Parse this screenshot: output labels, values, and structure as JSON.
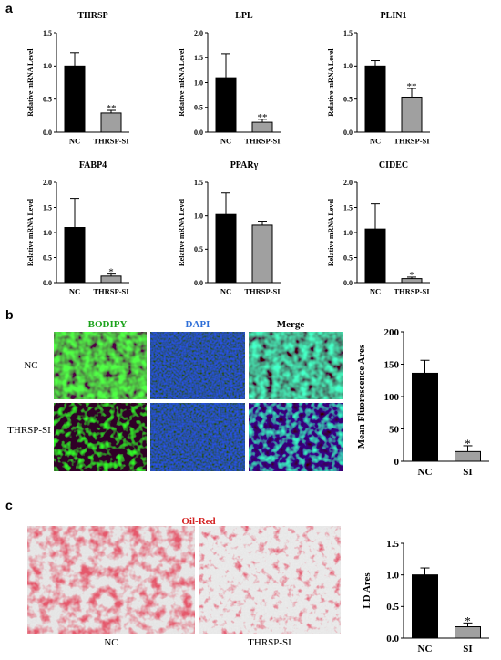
{
  "panels": {
    "a": "a",
    "b": "b",
    "c": "c"
  },
  "chart_data": [
    {
      "id": "THRSP",
      "type": "bar",
      "title": "THRSP",
      "ylabel": "Relative mRNA Level",
      "categories": [
        "NC",
        "THRSP-SI"
      ],
      "values": [
        1.0,
        0.29
      ],
      "errors": [
        0.2,
        0.04
      ],
      "colors": [
        "#000000",
        "#a0a0a0"
      ],
      "ylim": [
        0,
        1.5
      ],
      "yticks": [
        "0.0",
        "0.5",
        "1.0",
        "1.5"
      ],
      "annotations": [
        "",
        "**"
      ]
    },
    {
      "id": "LPL",
      "type": "bar",
      "title": "LPL",
      "ylabel": "Relative mRNA Level",
      "categories": [
        "NC",
        "THRSP-SI"
      ],
      "values": [
        1.08,
        0.2
      ],
      "errors": [
        0.5,
        0.06
      ],
      "colors": [
        "#000000",
        "#a0a0a0"
      ],
      "ylim": [
        0,
        2.0
      ],
      "yticks": [
        "0.0",
        "0.5",
        "1.0",
        "1.5",
        "2.0"
      ],
      "annotations": [
        "",
        "**"
      ]
    },
    {
      "id": "PLIN1",
      "type": "bar",
      "title": "PLIN1",
      "ylabel": "Relative mRNA Level",
      "categories": [
        "NC",
        "THRSP-SI"
      ],
      "values": [
        1.0,
        0.53
      ],
      "errors": [
        0.08,
        0.13
      ],
      "colors": [
        "#000000",
        "#a0a0a0"
      ],
      "ylim": [
        0,
        1.5
      ],
      "yticks": [
        "0.0",
        "0.5",
        "1.0",
        "1.5"
      ],
      "annotations": [
        "",
        "**"
      ]
    },
    {
      "id": "FABP4",
      "type": "bar",
      "title": "FABP4",
      "ylabel": "Relative mRNA Level",
      "categories": [
        "NC",
        "THRSP-SI"
      ],
      "values": [
        1.1,
        0.13
      ],
      "errors": [
        0.58,
        0.04
      ],
      "colors": [
        "#000000",
        "#a0a0a0"
      ],
      "ylim": [
        0,
        2.0
      ],
      "yticks": [
        "0.0",
        "0.5",
        "1.0",
        "1.5",
        "2.0"
      ],
      "annotations": [
        "",
        "*"
      ]
    },
    {
      "id": "PPARG",
      "type": "bar",
      "title": "PPARγ",
      "ylabel": "Relative mRNA Level",
      "categories": [
        "NC",
        "THRSP-SI"
      ],
      "values": [
        1.02,
        0.86
      ],
      "errors": [
        0.32,
        0.06
      ],
      "colors": [
        "#000000",
        "#a0a0a0"
      ],
      "ylim": [
        0,
        1.5
      ],
      "yticks": [
        "0.0",
        "0.5",
        "1.0",
        "1.5"
      ],
      "annotations": [
        "",
        ""
      ]
    },
    {
      "id": "CIDEC",
      "type": "bar",
      "title": "CIDEC",
      "ylabel": "Relative mRNA Level",
      "categories": [
        "NC",
        "THRSP-SI"
      ],
      "values": [
        1.07,
        0.08
      ],
      "errors": [
        0.5,
        0.03
      ],
      "colors": [
        "#000000",
        "#a0a0a0"
      ],
      "ylim": [
        0,
        2.0
      ],
      "yticks": [
        "0.0",
        "0.5",
        "1.0",
        "1.5",
        "2.0"
      ],
      "annotations": [
        "",
        "*"
      ]
    },
    {
      "id": "fluorescence",
      "type": "bar",
      "title": "",
      "ylabel": "Mean Fluorescence Ares",
      "categories": [
        "NC",
        "SI"
      ],
      "values": [
        136,
        15
      ],
      "errors": [
        20,
        9
      ],
      "colors": [
        "#000000",
        "#a0a0a0"
      ],
      "ylim": [
        0,
        200
      ],
      "yticks": [
        "0",
        "50",
        "100",
        "150",
        "200"
      ],
      "annotations": [
        "",
        "*"
      ]
    },
    {
      "id": "ld",
      "type": "bar",
      "title": "",
      "ylabel": "LD Ares",
      "categories": [
        "NC",
        "SI"
      ],
      "values": [
        1.0,
        0.18
      ],
      "errors": [
        0.11,
        0.06
      ],
      "colors": [
        "#000000",
        "#a0a0a0"
      ],
      "ylim": [
        0,
        1.5
      ],
      "yticks": [
        "0.0",
        "0.5",
        "1.0",
        "1.5"
      ],
      "annotations": [
        "",
        "*"
      ]
    }
  ],
  "micrographs": {
    "columns": [
      {
        "label": "BODIPY",
        "color": "#1aa21a"
      },
      {
        "label": "DAPI",
        "color": "#2e6fd8"
      },
      {
        "label": "Merge",
        "color": "#000000"
      }
    ],
    "rows": [
      "NC",
      "THRSP-SI"
    ]
  },
  "oil_red": {
    "title": "Oil-Red",
    "title_color": "#d42020",
    "labels": [
      "NC",
      "THRSP-SI"
    ]
  }
}
